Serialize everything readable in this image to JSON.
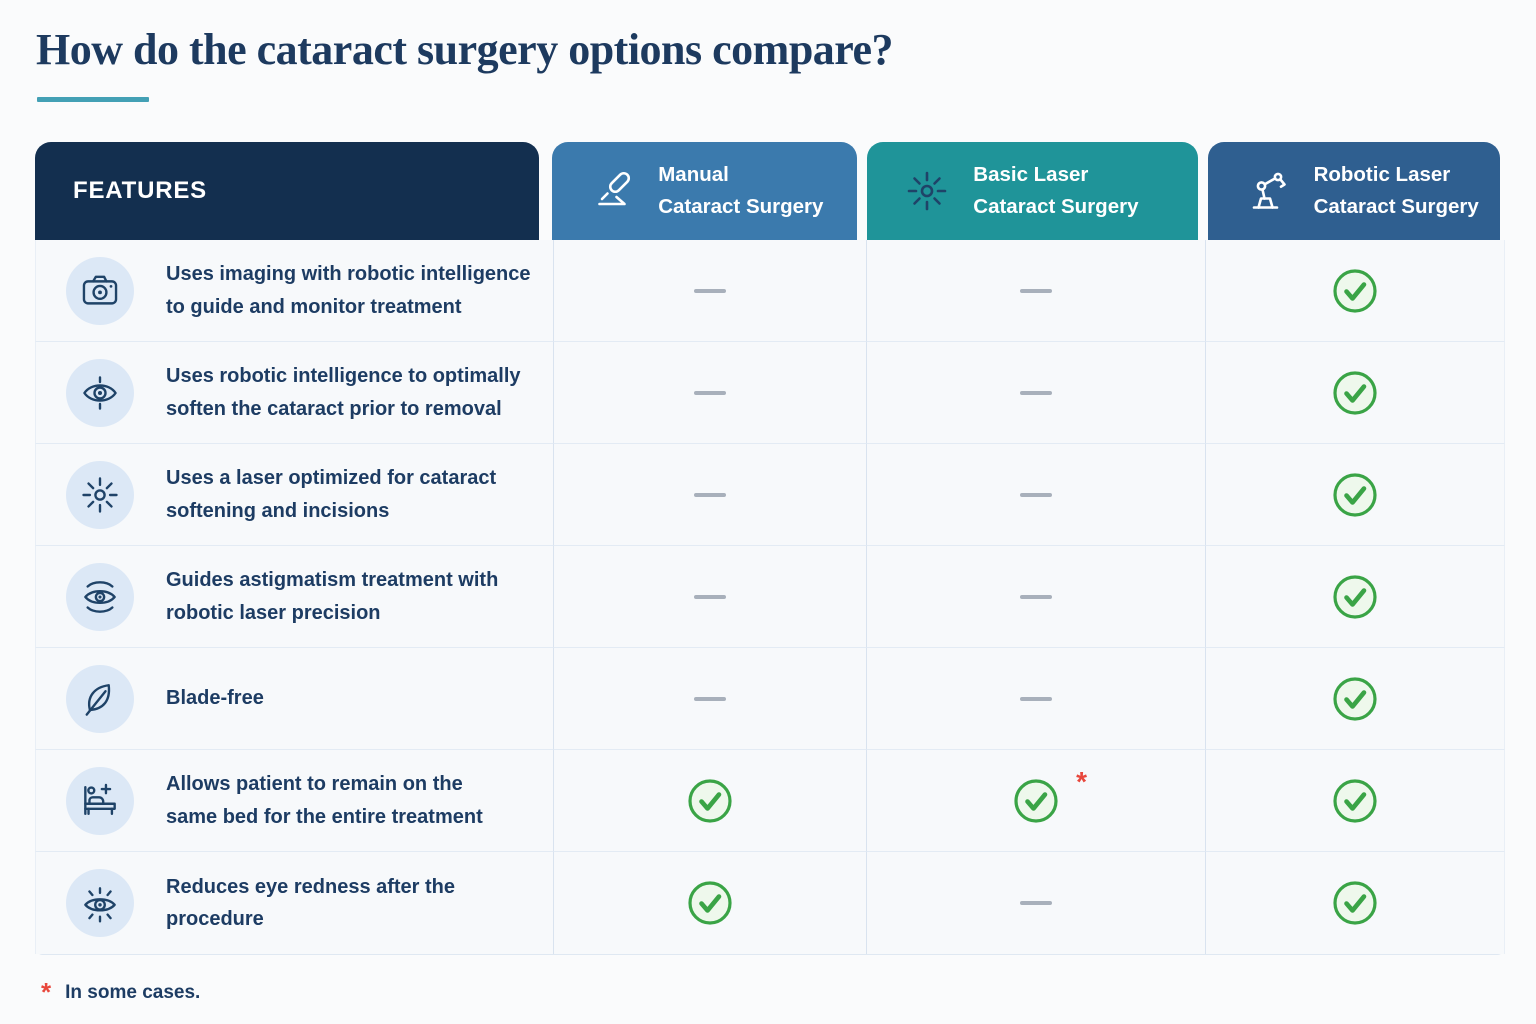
{
  "page": {
    "title": "How do the cataract surgery options compare?",
    "footnote": {
      "marker": "*",
      "text": "In some cases."
    }
  },
  "table": {
    "features_header": "FEATURES",
    "asterisk_marker": "*",
    "columns": [
      {
        "icon": "scalpel-icon",
        "label": "Manual\nCataract Surgery",
        "color": "#3b7aad"
      },
      {
        "icon": "laser-icon",
        "label": "Basic Laser\nCataract Surgery",
        "color": "#1f9499"
      },
      {
        "icon": "robot-arm-icon",
        "label": "Robotic Laser\nCataract Surgery",
        "color": "#2f5f90"
      }
    ],
    "rows": [
      {
        "icon": "camera-icon",
        "feature": "Uses imaging with robotic intelligence\nto guide and monitor treatment",
        "values": [
          "dash",
          "dash",
          "check"
        ]
      },
      {
        "icon": "scan-eye-icon",
        "feature": "Uses robotic intelligence to optimally\nsoften the cataract prior to removal",
        "values": [
          "dash",
          "dash",
          "check"
        ]
      },
      {
        "icon": "laser-icon",
        "feature": "Uses a laser optimized for cataract\nsoftening and incisions",
        "values": [
          "dash",
          "dash",
          "check"
        ]
      },
      {
        "icon": "precision-eye-icon",
        "feature": "Guides astigmatism treatment with\nrobotic laser precision",
        "values": [
          "dash",
          "dash",
          "check"
        ]
      },
      {
        "icon": "leaf-icon",
        "feature": "Blade-free",
        "values": [
          "dash",
          "dash",
          "check"
        ]
      },
      {
        "icon": "patient-bed-icon",
        "feature": "Allows patient to remain on the\nsame bed for the entire treatment",
        "values": [
          "check",
          "check-asterisk",
          "check"
        ]
      },
      {
        "icon": "eye-redness-icon",
        "feature": "Reduces eye redness after the procedure",
        "values": [
          "check",
          "dash",
          "check"
        ]
      }
    ]
  },
  "colors": {
    "title_navy": "#1d3a5f",
    "accent_underline": "#43a0b5",
    "features_header_bg": "#132f4f",
    "manual_header_bg": "#3b7aad",
    "basic_laser_header_bg": "#1f9499",
    "robotic_laser_header_bg": "#2f5f90",
    "check_green": "#3aa446",
    "dash_gray": "#a8b0bb",
    "asterisk_red": "#e8473c",
    "feature_icon_circle": "#dce8f6",
    "feature_icon_stroke": "#1f4368"
  }
}
